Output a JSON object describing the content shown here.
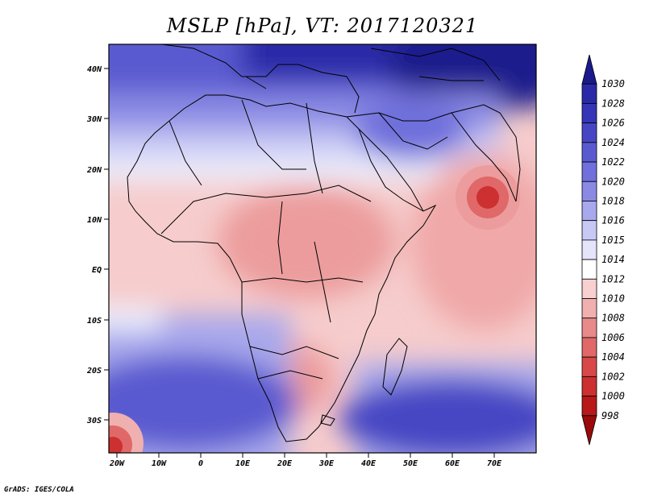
{
  "title": "MSLP [hPa], VT: 2017120321",
  "credit": "GrADS: IGES/COLA",
  "lat_ticks": [
    "40N",
    "30N",
    "20N",
    "10N",
    "EQ",
    "10S",
    "20S",
    "30S"
  ],
  "lon_ticks": [
    "20W",
    "10W",
    "0",
    "10E",
    "20E",
    "30E",
    "40E",
    "50E",
    "60E",
    "70E"
  ],
  "colorbar": {
    "levels": [
      "1030",
      "1028",
      "1026",
      "1024",
      "1022",
      "1020",
      "1018",
      "1016",
      "1015",
      "1014",
      "1012",
      "1010",
      "1008",
      "1006",
      "1004",
      "1002",
      "1000",
      "998"
    ],
    "colors": [
      "#1a1a8c",
      "#2a2aa8",
      "#3535b8",
      "#4646c4",
      "#5a5ad0",
      "#7070dc",
      "#8a8ae4",
      "#a8a8ec",
      "#c8c8f4",
      "#e4e4fa",
      "#ffffff",
      "#f8d0d0",
      "#f0b0b0",
      "#e88a8a",
      "#e06868",
      "#d84848",
      "#cc3030",
      "#b81818",
      "#9a0a0a"
    ]
  },
  "map": {
    "region": "Africa",
    "variable": "Mean sea level pressure",
    "units": "hPa"
  }
}
